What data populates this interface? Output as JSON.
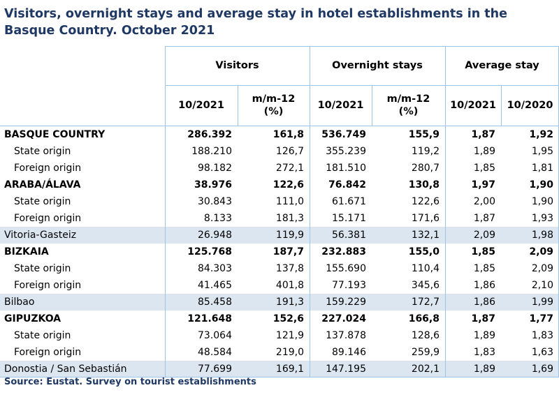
{
  "title": "Visitors, overnight stays and average stay in hotel establishments in the Basque Country.  October 2021",
  "header": {
    "groups": [
      "Visitors",
      "Overnight stays",
      "Average stay"
    ],
    "subcols": [
      "10/2021",
      "m/m-12 (%)",
      "10/2021",
      "m/m-12 (%)",
      "10/2021",
      "10/2020"
    ]
  },
  "rows": [
    {
      "label": "BASQUE COUNTRY",
      "type": "bold",
      "values": [
        "286.392",
        "161,8",
        "536.749",
        "155,9",
        "1,87",
        "1,92"
      ]
    },
    {
      "label": "State origin",
      "type": "indent",
      "values": [
        "188.210",
        "126,7",
        "355.239",
        "119,2",
        "1,89",
        "1,95"
      ]
    },
    {
      "label": "Foreign origin",
      "type": "indent",
      "values": [
        "98.182",
        "272,1",
        "181.510",
        "280,7",
        "1,85",
        "1,81"
      ]
    },
    {
      "label": "ARABA/ÁLAVA",
      "type": "bold",
      "values": [
        "38.976",
        "122,6",
        "76.842",
        "130,8",
        "1,97",
        "1,90"
      ]
    },
    {
      "label": "State origin",
      "type": "indent",
      "values": [
        "30.843",
        "111,0",
        "61.671",
        "122,6",
        "2,00",
        "1,90"
      ]
    },
    {
      "label": "Foreign origin",
      "type": "indent",
      "values": [
        "8.133",
        "181,3",
        "15.171",
        "171,6",
        "1,87",
        "1,93"
      ]
    },
    {
      "label": "Vitoria-Gasteiz",
      "type": "city",
      "values": [
        "26.948",
        "119,9",
        "56.381",
        "132,1",
        "2,09",
        "1,98"
      ]
    },
    {
      "label": "BIZKAIA",
      "type": "bold",
      "values": [
        "125.768",
        "187,7",
        "232.883",
        "155,0",
        "1,85",
        "2,09"
      ]
    },
    {
      "label": "State origin",
      "type": "indent",
      "values": [
        "84.303",
        "137,8",
        "155.690",
        "110,4",
        "1,85",
        "2,09"
      ]
    },
    {
      "label": "Foreign origin",
      "type": "indent",
      "values": [
        "41.465",
        "401,8",
        "77.193",
        "345,6",
        "1,86",
        "2,10"
      ]
    },
    {
      "label": "Bilbao",
      "type": "city",
      "values": [
        "85.458",
        "191,3",
        "159.229",
        "172,7",
        "1,86",
        "1,99"
      ]
    },
    {
      "label": "GIPUZKOA",
      "type": "bold",
      "values": [
        "121.648",
        "152,6",
        "227.024",
        "166,8",
        "1,87",
        "1,77"
      ]
    },
    {
      "label": "State origin",
      "type": "indent",
      "values": [
        "73.064",
        "121,9",
        "137.878",
        "128,6",
        "1,89",
        "1,83"
      ]
    },
    {
      "label": "Foreign origin",
      "type": "indent",
      "values": [
        "48.584",
        "219,0",
        "89.146",
        "259,9",
        "1,83",
        "1,63"
      ]
    },
    {
      "label": "Donostia / San Sebastián",
      "type": "city",
      "values": [
        "77.699",
        "169,1",
        "147.195",
        "202,1",
        "1,89",
        "1,69"
      ]
    }
  ],
  "source": "Source: Eustat. Survey on tourist establishments",
  "colors": {
    "title": "#1f3864",
    "grid": "#9dc3e6",
    "city_shade": "#dce6f1"
  }
}
